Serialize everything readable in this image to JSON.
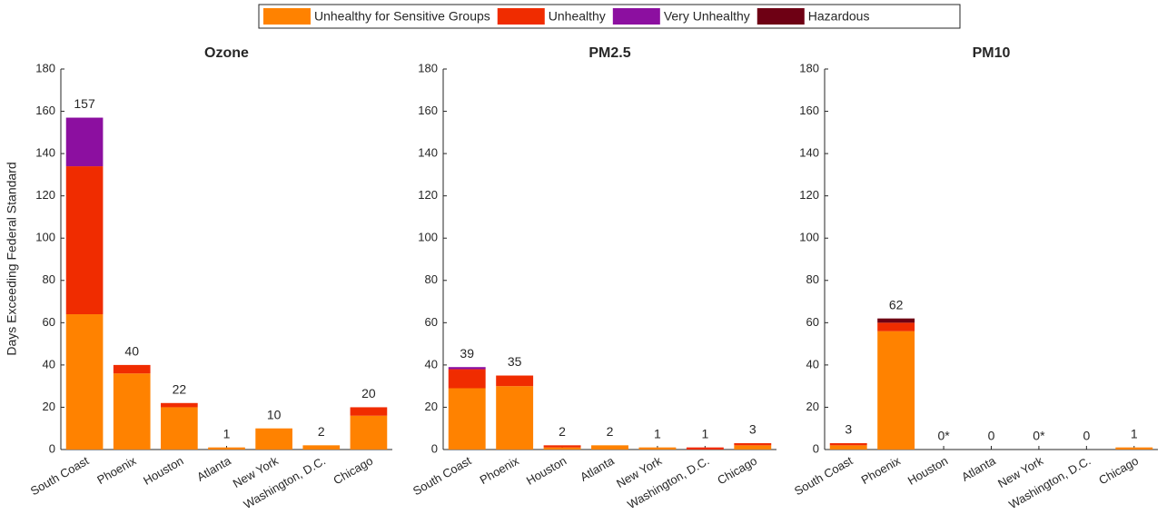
{
  "chart_data": [
    {
      "type": "bar",
      "title": "Ozone",
      "ylabel": "Days Exceeding Federal Standard",
      "categories": [
        "South Coast",
        "Phoenix",
        "Houston",
        "Atlanta",
        "New York",
        "Washington, D.C.",
        "Chicago"
      ],
      "series": [
        {
          "name": "Unhealthy for Sensitive Groups",
          "color": "#ff8200",
          "values": [
            64,
            36,
            20,
            1,
            10,
            2,
            16
          ]
        },
        {
          "name": "Unhealthy",
          "color": "#f02c00",
          "values": [
            70,
            4,
            2,
            0,
            0,
            0,
            4
          ]
        },
        {
          "name": "Very Unhealthy",
          "color": "#8c0fa0",
          "values": [
            23,
            0,
            0,
            0,
            0,
            0,
            0
          ]
        },
        {
          "name": "Hazardous",
          "color": "#6e0014",
          "values": [
            0,
            0,
            0,
            0,
            0,
            0,
            0
          ]
        }
      ],
      "totals": [
        157,
        40,
        22,
        1,
        10,
        2,
        20
      ],
      "total_labels": [
        "157",
        "40",
        "22",
        "1",
        "10",
        "2",
        "20"
      ],
      "ylim": [
        0,
        180
      ],
      "yticks": [
        0,
        20,
        40,
        60,
        80,
        100,
        120,
        140,
        160,
        180
      ]
    },
    {
      "type": "bar",
      "title": "PM2.5",
      "categories": [
        "South Coast",
        "Phoenix",
        "Houston",
        "Atlanta",
        "New York",
        "Washington, D.C.",
        "Chicago"
      ],
      "series": [
        {
          "color": "#ff8200",
          "values": [
            29,
            30,
            1,
            2,
            1,
            0,
            2
          ]
        },
        {
          "color": "#f02c00",
          "values": [
            9,
            5,
            1,
            0,
            0,
            1,
            1
          ]
        },
        {
          "color": "#8c0fa0",
          "values": [
            1,
            0,
            0,
            0,
            0,
            0,
            0
          ]
        },
        {
          "color": "#6e0014",
          "values": [
            0,
            0,
            0,
            0,
            0,
            0,
            0
          ]
        }
      ],
      "totals": [
        39,
        35,
        2,
        2,
        1,
        1,
        3
      ],
      "total_labels": [
        "39",
        "35",
        "2",
        "2",
        "1",
        "1",
        "3"
      ],
      "ylim": [
        0,
        180
      ],
      "yticks": [
        0,
        20,
        40,
        60,
        80,
        100,
        120,
        140,
        160,
        180
      ]
    },
    {
      "type": "bar",
      "title": "PM10",
      "categories": [
        "South Coast",
        "Phoenix",
        "Houston",
        "Atlanta",
        "New York",
        "Washington, D.C.",
        "Chicago"
      ],
      "series": [
        {
          "color": "#ff8200",
          "values": [
            2,
            56,
            0,
            0,
            0,
            0,
            1
          ]
        },
        {
          "color": "#f02c00",
          "values": [
            1,
            4,
            0,
            0,
            0,
            0,
            0
          ]
        },
        {
          "color": "#8c0fa0",
          "values": [
            0,
            0,
            0,
            0,
            0,
            0,
            0
          ]
        },
        {
          "color": "#6e0014",
          "values": [
            0,
            2,
            0,
            0,
            0,
            0,
            0
          ]
        }
      ],
      "totals": [
        3,
        62,
        0,
        0,
        0,
        0,
        1
      ],
      "total_labels": [
        "3",
        "62",
        "0*",
        "0",
        "0*",
        "0",
        "1"
      ],
      "ylim": [
        0,
        180
      ],
      "yticks": [
        0,
        20,
        40,
        60,
        80,
        100,
        120,
        140,
        160,
        180
      ]
    }
  ]
}
